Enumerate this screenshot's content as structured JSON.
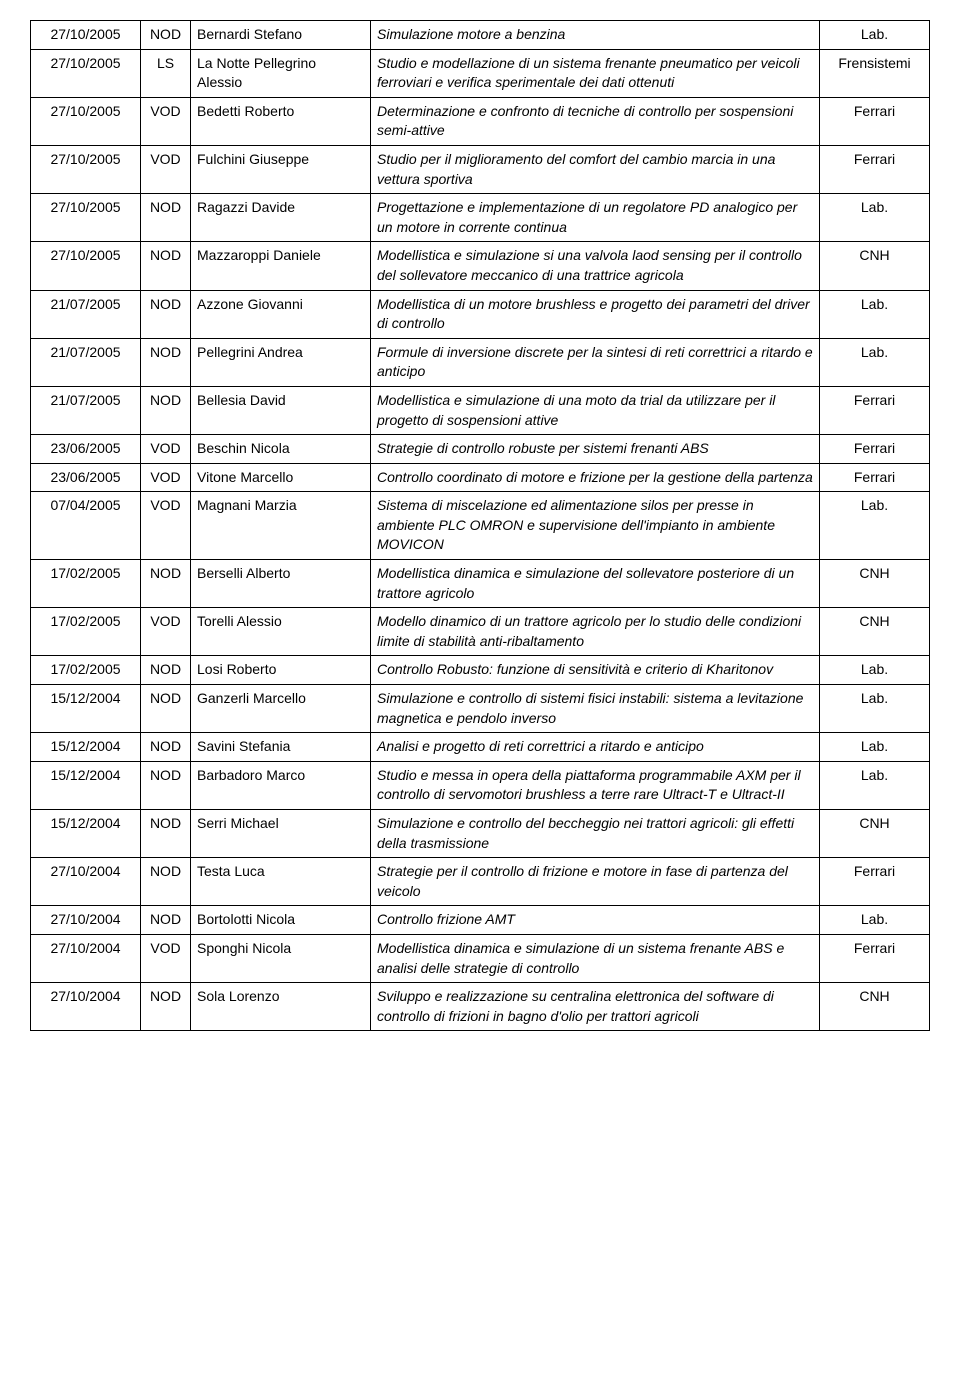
{
  "rows": [
    {
      "date": "27/10/2005",
      "type": "NOD",
      "name": "Bernardi Stefano",
      "title": "Simulazione motore a benzina",
      "org": "Lab.",
      "spacer": true
    },
    {
      "date": "27/10/2005",
      "type": "LS",
      "name": "La Notte Pellegrino Alessio",
      "title": "Studio e modellazione di un sistema frenante pneumatico per veicoli ferroviari e verifica sperimentale dei dati ottenuti",
      "org": "Frensistemi"
    },
    {
      "date": "27/10/2005",
      "type": "VOD",
      "name": "Bedetti Roberto",
      "title": "Determinazione e confronto di tecniche di controllo per sospensioni semi-attive",
      "org": "Ferrari"
    },
    {
      "date": "27/10/2005",
      "type": "VOD",
      "name": "Fulchini Giuseppe",
      "title": "Studio per il miglioramento del comfort del cambio marcia in una vettura sportiva",
      "org": "Ferrari"
    },
    {
      "date": "27/10/2005",
      "type": "NOD",
      "name": "Ragazzi Davide",
      "title": "Progettazione e implementazione di un regolatore PD analogico per un motore in corrente continua",
      "org": "Lab."
    },
    {
      "date": "27/10/2005",
      "type": "NOD",
      "name": "Mazzaroppi Daniele",
      "title": "Modellistica e simulazione si una valvola laod sensing per il controllo del sollevatore meccanico di una trattrice agricola",
      "org": "CNH"
    },
    {
      "date": "21/07/2005",
      "type": "NOD",
      "name": "Azzone Giovanni",
      "title": "Modellistica di un motore brushless e progetto dei parametri del driver di controllo",
      "org": "Lab."
    },
    {
      "date": "21/07/2005",
      "type": "NOD",
      "name": "Pellegrini Andrea",
      "title": "Formule di inversione discrete per la sintesi di reti correttrici a ritardo e anticipo",
      "org": "Lab."
    },
    {
      "date": "21/07/2005",
      "type": "NOD",
      "name": "Bellesia David",
      "title": "Modellistica e simulazione di una moto da trial da utilizzare per il progetto di sospensioni attive",
      "org": "Ferrari"
    },
    {
      "date": "23/06/2005",
      "type": "VOD",
      "name": "Beschin Nicola",
      "title": "Strategie di controllo robuste per sistemi frenanti ABS",
      "org": "Ferrari"
    },
    {
      "date": "23/06/2005",
      "type": "VOD",
      "name": "Vitone Marcello",
      "title": "Controllo coordinato di motore e frizione per la gestione della partenza",
      "org": "Ferrari"
    },
    {
      "date": "07/04/2005",
      "type": "VOD",
      "name": "Magnani Marzia",
      "title": "Sistema di miscelazione ed alimentazione silos per presse in ambiente PLC OMRON e supervisione dell'impianto in ambiente MOVICON",
      "org": "Lab."
    },
    {
      "date": "17/02/2005",
      "type": "NOD",
      "name": "Berselli Alberto",
      "title": "Modellistica dinamica e simulazione del sollevatore posteriore di un trattore agricolo",
      "org": "CNH"
    },
    {
      "date": "17/02/2005",
      "type": "VOD",
      "name": "Torelli Alessio",
      "title": "Modello dinamico di un trattore agricolo per lo studio delle condizioni limite di stabilità anti-ribaltamento",
      "org": "CNH"
    },
    {
      "date": "17/02/2005",
      "type": "NOD",
      "name": "Losi Roberto",
      "title": "Controllo Robusto: funzione di sensitività e criterio di Kharitonov",
      "org": "Lab."
    },
    {
      "date": "15/12/2004",
      "type": "NOD",
      "name": "Ganzerli Marcello",
      "title": "Simulazione e controllo di sistemi fisici instabili: sistema a levitazione magnetica e pendolo inverso",
      "org": "Lab."
    },
    {
      "date": "15/12/2004",
      "type": "NOD",
      "name": "Savini Stefania",
      "title": "Analisi e progetto di reti correttrici a ritardo e anticipo",
      "org": "Lab."
    },
    {
      "date": "15/12/2004",
      "type": "NOD",
      "name": "Barbadoro Marco",
      "title": "Studio e messa in opera della piattaforma programmabile AXM per il controllo di servomotori brushless a terre rare Ultract-T e Ultract-II",
      "org": "Lab."
    },
    {
      "date": "15/12/2004",
      "type": "NOD",
      "name": "Serri Michael",
      "title": "Simulazione e controllo del beccheggio nei trattori agricoli: gli effetti della trasmissione",
      "org": "CNH"
    },
    {
      "date": "27/10/2004",
      "type": "NOD",
      "name": "Testa Luca",
      "title": "Strategie per il controllo di frizione e motore in fase di partenza del veicolo",
      "org": "Ferrari"
    },
    {
      "date": "27/10/2004",
      "type": "NOD",
      "name": "Bortolotti Nicola",
      "title": "Controllo frizione AMT",
      "org": "Lab.",
      "spacer": true
    },
    {
      "date": "27/10/2004",
      "type": "VOD",
      "name": "Sponghi Nicola",
      "title": "Modellistica dinamica e simulazione di un sistema frenante ABS e analisi delle strategie di controllo",
      "org": "Ferrari"
    },
    {
      "date": "27/10/2004",
      "type": "NOD",
      "name": "Sola Lorenzo",
      "title": "Sviluppo e realizzazione su centralina elettronica del software di controllo di frizioni in bagno d'olio per trattori agricoli",
      "org": "CNH"
    }
  ]
}
